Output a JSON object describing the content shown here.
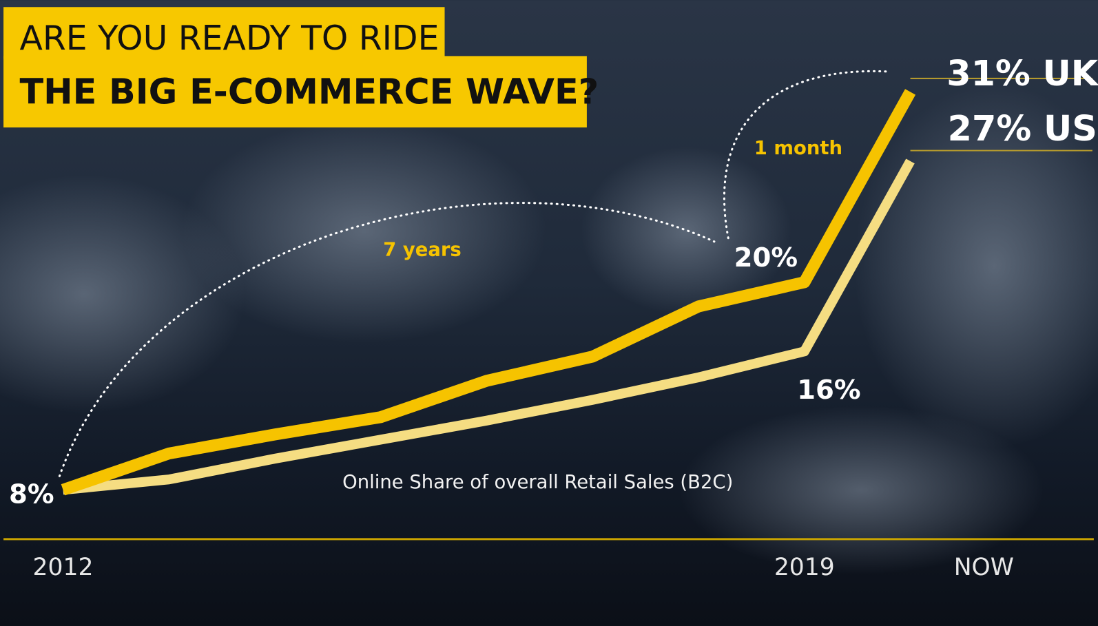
{
  "chart_data": {
    "type": "line",
    "title": [
      "ARE YOU READY TO RIDE",
      "THE BIG E-COMMERCE WAVE?"
    ],
    "subtitle": "Online Share of overall Retail Sales (B2C)",
    "annotations": [
      "7 years",
      "1 month"
    ],
    "categories": [
      "2012",
      null,
      null,
      null,
      null,
      null,
      null,
      "2019",
      "NOW"
    ],
    "series": [
      {
        "name": "UK",
        "color": "#f6c300",
        "values": [
          8,
          10.1,
          11.2,
          12.2,
          14.3,
          15.7,
          18.6,
          20,
          31
        ],
        "value_labels": [
          "8%",
          null,
          null,
          null,
          null,
          null,
          null,
          "20%",
          "31%"
        ]
      },
      {
        "name": "US",
        "color": "#f5dd82",
        "values": [
          8,
          8.6,
          9.8,
          10.9,
          12,
          13.2,
          14.5,
          16,
          27
        ],
        "value_labels": [
          null,
          null,
          null,
          null,
          null,
          null,
          null,
          "16%",
          "27%"
        ]
      }
    ],
    "ylim": [
      5.15,
      34
    ]
  }
}
